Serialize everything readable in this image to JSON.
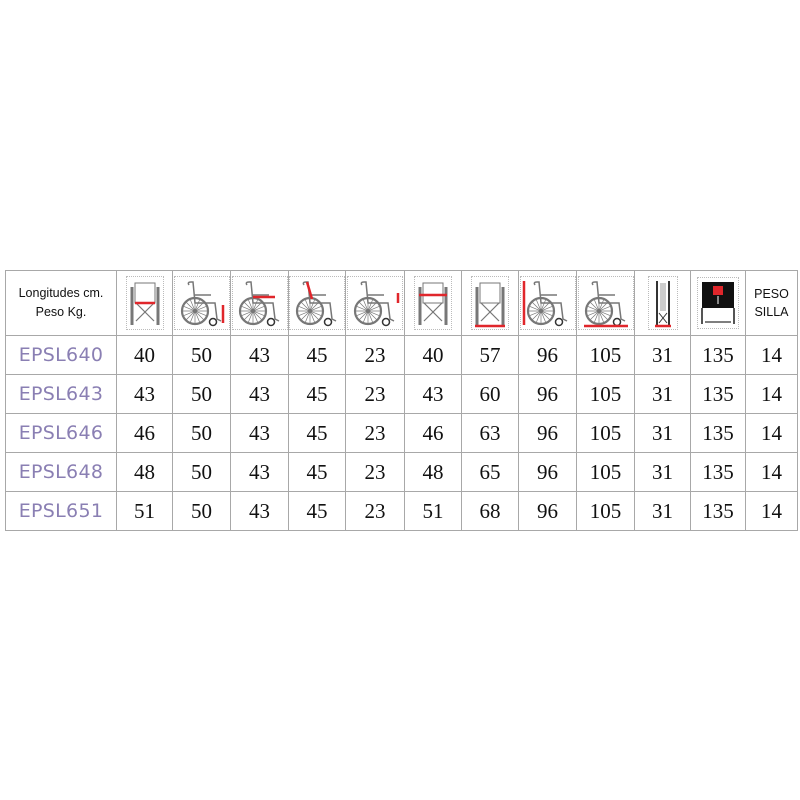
{
  "header": {
    "label_line1": "Longitudes cm.",
    "label_line2": "Peso Kg.",
    "icons": [
      {
        "name": "front-seat-width-icon",
        "view": "front",
        "mark": "seat"
      },
      {
        "name": "side-seat-height-icon",
        "view": "side",
        "mark": "seat-height"
      },
      {
        "name": "side-seat-depth-icon",
        "view": "side",
        "mark": "seat-depth"
      },
      {
        "name": "side-backrest-height-icon",
        "view": "side",
        "mark": "backrest"
      },
      {
        "name": "side-armrest-height-icon",
        "view": "side",
        "mark": "armrest"
      },
      {
        "name": "front-armrest-width-icon",
        "view": "front",
        "mark": "arm"
      },
      {
        "name": "front-total-width-icon",
        "view": "front",
        "mark": "base"
      },
      {
        "name": "side-total-height-icon",
        "view": "side",
        "mark": "total-height"
      },
      {
        "name": "side-total-length-icon",
        "view": "side",
        "mark": "total-length"
      },
      {
        "name": "folded-width-icon",
        "view": "folded",
        "mark": "base"
      },
      {
        "name": "max-load-icon",
        "view": "load",
        "mark": "weight"
      }
    ],
    "peso_line1": "PESO",
    "peso_line2": "SILLA"
  },
  "accent_color": "#e0262b",
  "model_color": "#8a7fb3",
  "rows": [
    {
      "model": "EPSL640",
      "values": [
        "40",
        "50",
        "43",
        "45",
        "23",
        "40",
        "57",
        "96",
        "105",
        "31",
        "135",
        "14"
      ]
    },
    {
      "model": "EPSL643",
      "values": [
        "43",
        "50",
        "43",
        "45",
        "23",
        "43",
        "60",
        "96",
        "105",
        "31",
        "135",
        "14"
      ]
    },
    {
      "model": "EPSL646",
      "values": [
        "46",
        "50",
        "43",
        "45",
        "23",
        "46",
        "63",
        "96",
        "105",
        "31",
        "135",
        "14"
      ]
    },
    {
      "model": "EPSL648",
      "values": [
        "48",
        "50",
        "43",
        "45",
        "23",
        "48",
        "65",
        "96",
        "105",
        "31",
        "135",
        "14"
      ]
    },
    {
      "model": "EPSL651",
      "values": [
        "51",
        "50",
        "43",
        "45",
        "23",
        "51",
        "68",
        "96",
        "105",
        "31",
        "135",
        "14"
      ]
    }
  ]
}
